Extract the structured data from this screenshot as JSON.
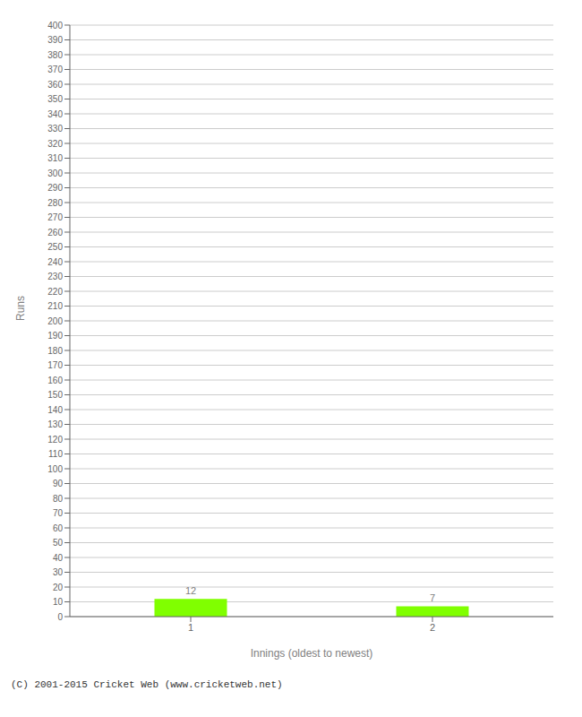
{
  "chart_data": {
    "type": "bar",
    "categories": [
      "1",
      "2"
    ],
    "values": [
      12,
      7
    ],
    "color": "#80ff00",
    "xlabel": "Innings (oldest to newest)",
    "ylabel": "Runs",
    "ylim": [
      0,
      400
    ],
    "yticks": [
      0,
      10,
      20,
      30,
      40,
      50,
      60,
      70,
      80,
      90,
      100,
      110,
      120,
      130,
      140,
      150,
      160,
      170,
      180,
      190,
      200,
      210,
      220,
      230,
      240,
      250,
      260,
      270,
      280,
      290,
      300,
      310,
      320,
      330,
      340,
      350,
      360,
      370,
      380,
      390,
      400
    ],
    "grid": true,
    "data_labels": true,
    "annotations": [
      "(C) 2001-2015 Cricket Web (www.cricketweb.net)"
    ]
  }
}
